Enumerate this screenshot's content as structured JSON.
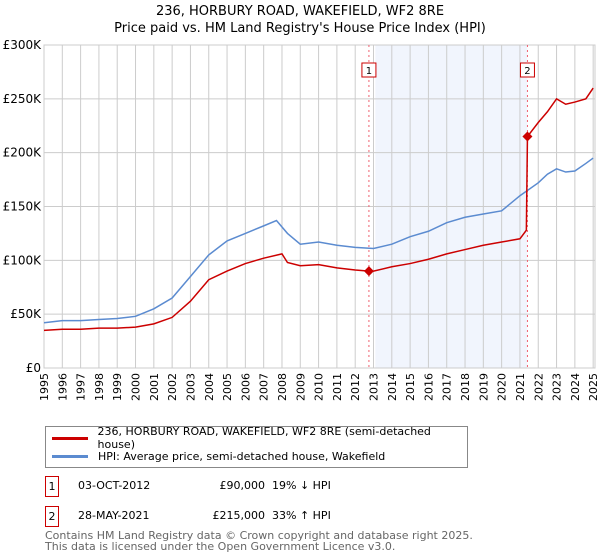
{
  "header": {
    "title": "236, HORBURY ROAD, WAKEFIELD, WF2 8RE",
    "subtitle": "Price paid vs. HM Land Registry's House Price Index (HPI)"
  },
  "chart_data": {
    "type": "line",
    "title": "236, HORBURY ROAD, WAKEFIELD, WF2 8RE",
    "subtitle": "Price paid vs. HM Land Registry's House Price Index (HPI)",
    "xlim": [
      1995,
      2025.1
    ],
    "ylim": [
      0,
      300000
    ],
    "x_ticks": [
      "1995",
      "1996",
      "1997",
      "1998",
      "1999",
      "2000",
      "2001",
      "2002",
      "2003",
      "2004",
      "2005",
      "2006",
      "2007",
      "2008",
      "2009",
      "2010",
      "2011",
      "2012",
      "2013",
      "2014",
      "2015",
      "2016",
      "2017",
      "2018",
      "2019",
      "2020",
      "2021",
      "2022",
      "2023",
      "2024",
      "2025"
    ],
    "y_ticks": [
      {
        "v": 0,
        "label": "£0"
      },
      {
        "v": 50000,
        "label": "£50K"
      },
      {
        "v": 100000,
        "label": "£100K"
      },
      {
        "v": 150000,
        "label": "£150K"
      },
      {
        "v": 200000,
        "label": "£200K"
      },
      {
        "v": 250000,
        "label": "£250K"
      },
      {
        "v": 300000,
        "label": "£300K"
      }
    ],
    "grid": true,
    "shaded_range": [
      2013.1,
      2021.4
    ],
    "series": [
      {
        "name": "236, HORBURY ROAD, WAKEFIELD, WF2 8RE (semi-detached house)",
        "color": "#cc0000",
        "x": [
          1995,
          1996,
          1997,
          1998,
          1999,
          2000,
          2001,
          2002,
          2003,
          2004,
          2005,
          2006,
          2007,
          2008,
          2008.3,
          2009,
          2010,
          2011,
          2012,
          2012.75,
          2013,
          2014,
          2015,
          2016,
          2017,
          2018,
          2019,
          2020,
          2021.0,
          2021.35,
          2021.41,
          2022,
          2022.5,
          2023,
          2023.5,
          2024,
          2024.6,
          2025
        ],
        "y": [
          35000,
          36000,
          36000,
          37000,
          37000,
          38000,
          41000,
          47000,
          62000,
          82000,
          90000,
          97000,
          102000,
          106000,
          98000,
          95000,
          96000,
          93000,
          91000,
          90000,
          90000,
          94000,
          97000,
          101000,
          106000,
          110000,
          114000,
          117000,
          120000,
          128000,
          215000,
          228000,
          238000,
          250000,
          245000,
          247000,
          250000,
          260000
        ]
      },
      {
        "name": "HPI: Average price, semi-detached house, Wakefield",
        "color": "#5b8bd0",
        "x": [
          1995,
          1996,
          1997,
          1998,
          1999,
          2000,
          2001,
          2002,
          2003,
          2004,
          2005,
          2006,
          2007,
          2007.7,
          2008.3,
          2009,
          2010,
          2011,
          2012,
          2013,
          2014,
          2015,
          2016,
          2017,
          2018,
          2019,
          2020,
          2021,
          2022,
          2022.5,
          2023,
          2023.5,
          2024,
          2024.6,
          2025
        ],
        "y": [
          42000,
          44000,
          44000,
          45000,
          46000,
          48000,
          55000,
          65000,
          85000,
          105000,
          118000,
          125000,
          132000,
          137000,
          125000,
          115000,
          117000,
          114000,
          112000,
          111000,
          115000,
          122000,
          127000,
          135000,
          140000,
          143000,
          146000,
          160000,
          172000,
          180000,
          185000,
          182000,
          183000,
          190000,
          195000
        ]
      }
    ],
    "sales": [
      {
        "label": "1",
        "x": 2012.75,
        "y": 90000
      },
      {
        "label": "2",
        "x": 2021.41,
        "y": 215000
      }
    ]
  },
  "legend": {
    "items": [
      {
        "label": "236, HORBURY ROAD, WAKEFIELD, WF2 8RE (semi-detached house)",
        "color": "#cc0000"
      },
      {
        "label": "HPI: Average price, semi-detached house, Wakefield",
        "color": "#5b8bd0"
      }
    ]
  },
  "transactions": [
    {
      "num": "1",
      "date": "03-OCT-2012",
      "price": "£90,000",
      "hpi": "19% ↓ HPI"
    },
    {
      "num": "2",
      "date": "28-MAY-2021",
      "price": "£215,000",
      "hpi": "33% ↑ HPI"
    }
  ],
  "footer": {
    "line1": "Contains HM Land Registry data © Crown copyright and database right 2025.",
    "line2": "This data is licensed under the Open Government Licence v3.0."
  }
}
